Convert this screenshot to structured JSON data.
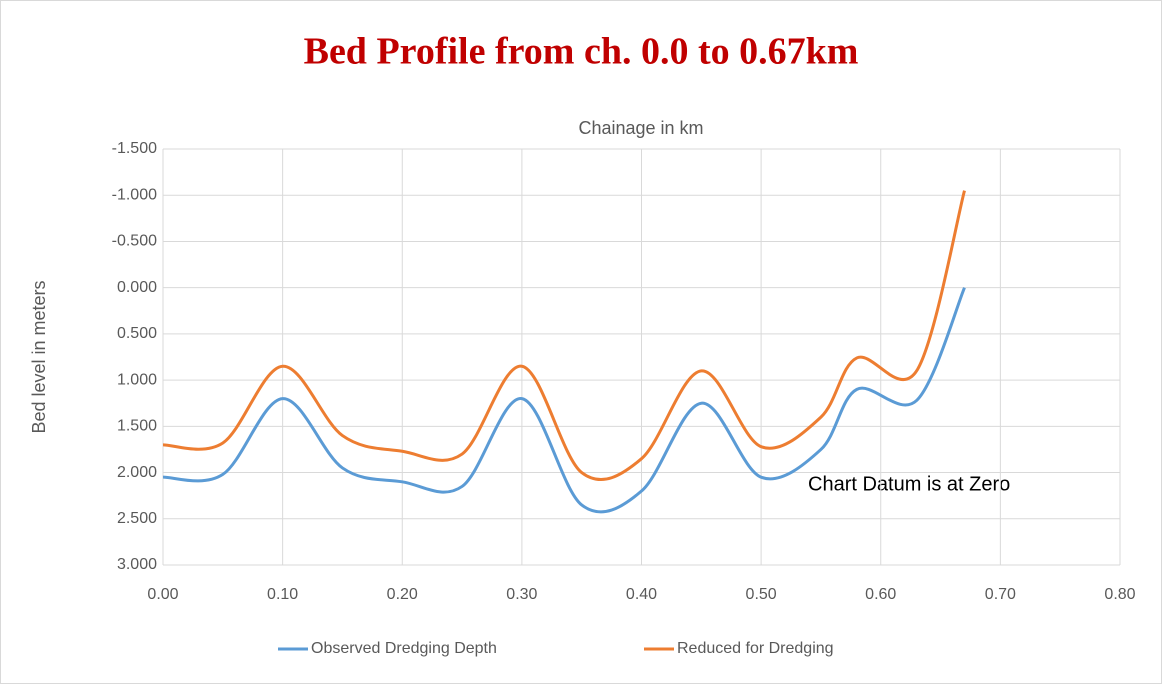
{
  "chart_data": {
    "type": "line",
    "title": "Bed Profile  from ch. 0.0 to 0.67km",
    "x_label": "Chainage in km",
    "y_label": "Bed level in meters",
    "annotation": "Chart Datum is at Zero",
    "x": [
      0,
      0.05,
      0.1,
      0.15,
      0.2,
      0.25,
      0.3,
      0.35,
      0.4,
      0.45,
      0.5,
      0.55,
      0.58,
      0.63,
      0.67
    ],
    "series": [
      {
        "name": "Observed Dredging Depth",
        "color": "#5b9bd5",
        "values": [
          2.05,
          2.02,
          1.2,
          1.95,
          2.1,
          2.15,
          1.2,
          2.35,
          2.2,
          1.25,
          2.05,
          1.75,
          1.1,
          1.22,
          0.0
        ]
      },
      {
        "name": "Reduced for Dredging",
        "color": "#ed7d31",
        "values": [
          1.7,
          1.68,
          0.85,
          1.6,
          1.77,
          1.8,
          0.85,
          2.0,
          1.85,
          0.9,
          1.72,
          1.4,
          0.76,
          0.9,
          -1.05
        ]
      }
    ],
    "xlim": [
      0,
      0.8
    ],
    "xticks": [
      {
        "value": 0,
        "label": "0.00"
      },
      {
        "value": 0.1,
        "label": "0.10"
      },
      {
        "value": 0.2,
        "label": "0.20"
      },
      {
        "value": 0.3,
        "label": "0.30"
      },
      {
        "value": 0.4,
        "label": "0.40"
      },
      {
        "value": 0.5,
        "label": "0.50"
      },
      {
        "value": 0.6,
        "label": "0.60"
      },
      {
        "value": 0.7,
        "label": "0.70"
      },
      {
        "value": 0.8,
        "label": "0.80"
      }
    ],
    "ylim": [
      3.0,
      -1.5
    ],
    "yticks": [
      {
        "value": -1.5,
        "label": "-1.500"
      },
      {
        "value": -1.0,
        "label": "-1.000"
      },
      {
        "value": -0.5,
        "label": "-0.500"
      },
      {
        "value": 0,
        "label": "0.000"
      },
      {
        "value": 0.5,
        "label": "0.500"
      },
      {
        "value": 1.0,
        "label": "1.000"
      },
      {
        "value": 1.5,
        "label": "1.500"
      },
      {
        "value": 2.0,
        "label": "2.000"
      },
      {
        "value": 2.5,
        "label": "2.500"
      },
      {
        "value": 3.0,
        "label": "3.000"
      }
    ],
    "grid": true,
    "legend": "bottom"
  }
}
